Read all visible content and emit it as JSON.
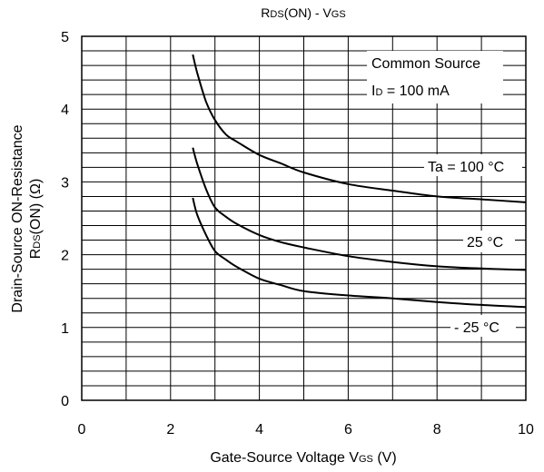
{
  "chart_data": {
    "type": "line",
    "title": {
      "main": "R",
      "main_sub": "DS",
      "middle": "(ON) - V",
      "end_sub": "GS"
    },
    "xlabel": {
      "text": "Gate-Source Voltage  V",
      "sub": "GS",
      "unit": " (V)"
    },
    "ylabel": {
      "line1": "Drain-Source ON-Resistance",
      "line2_start": "R",
      "line2_sub": "DS",
      "line2_end": "(ON) (Ω)"
    },
    "xlim": [
      0,
      10
    ],
    "ylim": [
      0,
      5
    ],
    "x_ticks": [
      "0",
      "2",
      "4",
      "6",
      "8",
      "10"
    ],
    "y_ticks": [
      "0",
      "1",
      "2",
      "3",
      "4",
      "5"
    ],
    "grid": true,
    "conditions": {
      "line1": "Common Source",
      "line2_start": "I",
      "line2_sub": "D",
      "line2_end": " = 100 mA"
    },
    "series": [
      {
        "name": "Ta = 100 °C",
        "x": [
          2.5,
          2.6,
          2.8,
          3.0,
          3.25,
          3.5,
          4.0,
          4.5,
          5.0,
          6.0,
          7.0,
          8.0,
          9.0,
          10.0
        ],
        "y": [
          4.75,
          4.5,
          4.1,
          3.85,
          3.65,
          3.55,
          3.37,
          3.25,
          3.13,
          2.97,
          2.88,
          2.8,
          2.76,
          2.72
        ]
      },
      {
        "name": "25 °C",
        "x": [
          2.5,
          2.6,
          2.8,
          3.0,
          3.25,
          3.5,
          4.0,
          4.5,
          5.0,
          6.0,
          7.0,
          8.0,
          9.0,
          10.0
        ],
        "y": [
          3.47,
          3.25,
          2.9,
          2.65,
          2.52,
          2.42,
          2.27,
          2.17,
          2.1,
          1.98,
          1.9,
          1.84,
          1.81,
          1.79
        ],
        "label": "25 °C"
      },
      {
        "name": "-25 °C",
        "x": [
          2.5,
          2.6,
          2.8,
          3.0,
          3.25,
          3.5,
          4.0,
          4.5,
          5.0,
          6.0,
          7.0,
          8.0,
          9.0,
          10.0
        ],
        "y": [
          2.78,
          2.55,
          2.27,
          2.05,
          1.93,
          1.83,
          1.67,
          1.58,
          1.5,
          1.44,
          1.4,
          1.35,
          1.31,
          1.28
        ],
        "label": "- 25 °C"
      }
    ],
    "series_labels": [
      "Ta = 100 °C",
      "25 °C",
      "- 25 °C"
    ]
  }
}
